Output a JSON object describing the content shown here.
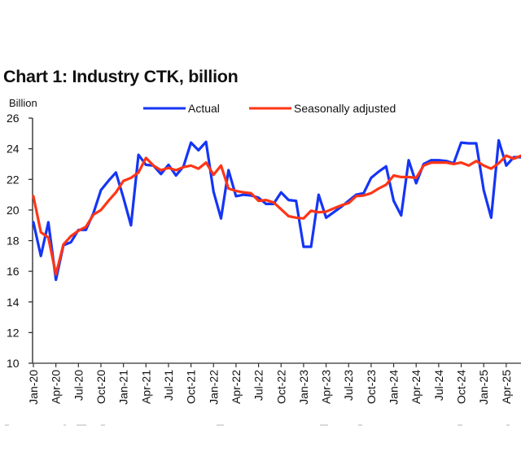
{
  "chart_data": {
    "type": "line",
    "title": "Chart 1: Industry CTK, billion",
    "ylabel": "Billion",
    "xlabel": "",
    "ylim": [
      10,
      26
    ],
    "yticks": [
      10,
      12,
      14,
      16,
      18,
      20,
      22,
      24,
      26
    ],
    "grid": false,
    "legend_position": "top-center",
    "x": [
      "Jan-20",
      "Feb-20",
      "Mar-20",
      "Apr-20",
      "May-20",
      "Jun-20",
      "Jul-20",
      "Aug-20",
      "Sep-20",
      "Oct-20",
      "Nov-20",
      "Dec-20",
      "Jan-21",
      "Feb-21",
      "Mar-21",
      "Apr-21",
      "May-21",
      "Jun-21",
      "Jul-21",
      "Aug-21",
      "Sep-21",
      "Oct-21",
      "Nov-21",
      "Dec-21",
      "Jan-22",
      "Feb-22",
      "Mar-22",
      "Apr-22",
      "May-22",
      "Jun-22",
      "Jul-22",
      "Aug-22",
      "Sep-22",
      "Oct-22",
      "Nov-22",
      "Dec-22",
      "Jan-23",
      "Feb-23",
      "Mar-23",
      "Apr-23",
      "May-23",
      "Jun-23",
      "Jul-23",
      "Aug-23",
      "Sep-23",
      "Oct-23",
      "Nov-23",
      "Dec-23",
      "Jan-24",
      "Feb-24",
      "Mar-24",
      "Apr-24",
      "May-24",
      "Jun-24",
      "Jul-24",
      "Aug-24",
      "Sep-24",
      "Oct-24",
      "Nov-24",
      "Dec-24",
      "Jan-25",
      "Feb-25",
      "Mar-25",
      "Apr-25",
      "May-25",
      "Jun-25"
    ],
    "xtick_labels": [
      "Jan-20",
      "Apr-20",
      "Jul-20",
      "Oct-20",
      "Jan-21",
      "Apr-21",
      "Jul-21",
      "Oct-21",
      "Jan-22",
      "Apr-22",
      "Jul-22",
      "Oct-22",
      "Jan-23",
      "Apr-23",
      "Jul-23",
      "Oct-23",
      "Jan-24",
      "Apr-24",
      "Jul-24",
      "Oct-24",
      "Jan-25",
      "Apr-25"
    ],
    "series": [
      {
        "name": "Actual",
        "color": "#1535f5",
        "values": [
          19.2,
          17.0,
          19.2,
          15.45,
          17.7,
          17.9,
          18.7,
          18.7,
          19.8,
          21.3,
          21.9,
          22.45,
          20.8,
          19.0,
          23.6,
          22.95,
          22.9,
          22.35,
          22.95,
          22.25,
          22.85,
          24.4,
          23.9,
          24.45,
          21.2,
          19.45,
          22.6,
          20.9,
          21.0,
          20.95,
          20.8,
          20.4,
          20.4,
          21.15,
          20.65,
          20.6,
          17.6,
          17.6,
          21.0,
          19.5,
          19.85,
          20.2,
          20.6,
          21.0,
          21.1,
          22.1,
          22.5,
          22.85,
          20.6,
          19.65,
          23.25,
          21.75,
          23.0,
          23.25,
          23.25,
          23.2,
          23.05,
          24.4,
          24.35,
          24.35,
          21.3,
          19.5,
          24.55,
          22.9,
          23.45,
          23.45
        ]
      },
      {
        "name": "Seasonally adjusted",
        "color": "#ff3516",
        "values": [
          20.9,
          18.55,
          18.2,
          15.8,
          17.75,
          18.3,
          18.65,
          18.9,
          19.7,
          20.0,
          20.6,
          21.15,
          21.9,
          22.1,
          22.45,
          23.4,
          22.9,
          22.6,
          22.75,
          22.6,
          22.8,
          22.9,
          22.7,
          23.1,
          22.3,
          22.9,
          21.4,
          21.25,
          21.15,
          21.1,
          20.6,
          20.65,
          20.5,
          20.05,
          19.6,
          19.5,
          19.45,
          19.95,
          19.85,
          19.9,
          20.1,
          20.3,
          20.45,
          20.9,
          20.95,
          21.1,
          21.4,
          21.65,
          22.25,
          22.15,
          22.15,
          22.1,
          22.9,
          23.1,
          23.1,
          23.1,
          23.0,
          23.1,
          22.9,
          23.2,
          22.9,
          22.7,
          23.05,
          23.55,
          23.35,
          23.55
        ]
      }
    ]
  }
}
